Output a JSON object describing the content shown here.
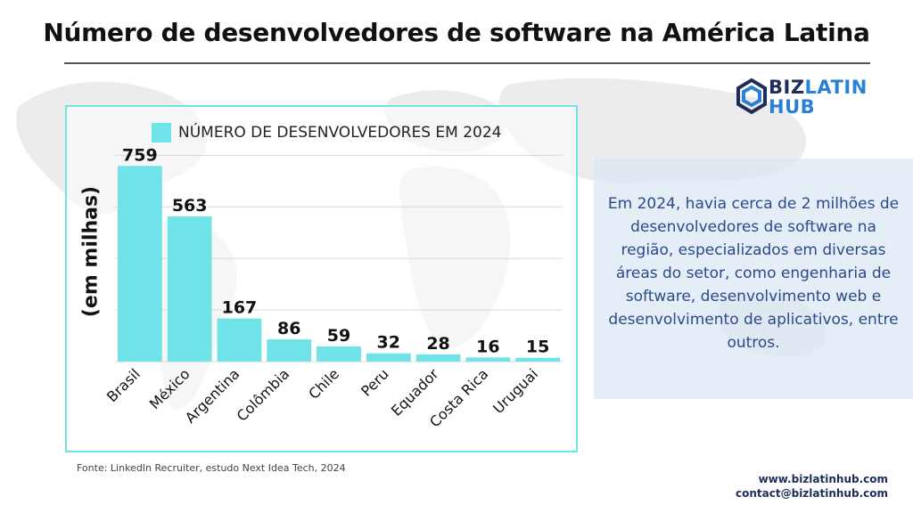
{
  "page": {
    "title": "Número de desenvolvedores de software na América Latina",
    "source": "Fonte: LinkedIn Recruiter, estudo Next Idea Tech, 2024",
    "website": "www.bizlatinhub.com",
    "email": "contact@bizlatinhub.com"
  },
  "logo": {
    "biz": "BIZ",
    "latin": "LATIN",
    "hub": "HUB"
  },
  "info_box": {
    "text": "Em 2024, havia cerca de 2 milhões de desenvolvedores de software na região, especializados em diversas áreas do setor, como engenharia de software, desenvolvimento web e desenvolvimento de aplicativos, entre outros."
  },
  "colors": {
    "bar": "#6fe3e8",
    "info_text": "#2a4a8a",
    "brand_dark": "#1d2d5a",
    "brand_blue": "#2a7fd6"
  },
  "chart_data": {
    "type": "bar",
    "categories": [
      "Brasil",
      "México",
      "Argentina",
      "Colômbia",
      "Chile",
      "Peru",
      "Equador",
      "Costa Rica",
      "Uruguai"
    ],
    "series": [
      {
        "name": "NÚMERO DE DESENVOLVEDORES EM 2024",
        "values": [
          759,
          563,
          167,
          86,
          59,
          32,
          28,
          16,
          15
        ]
      }
    ],
    "ylabel": "(em milhas)",
    "xlabel": "",
    "ylim": [
      0,
      800
    ],
    "grid": true,
    "legend": "top"
  }
}
